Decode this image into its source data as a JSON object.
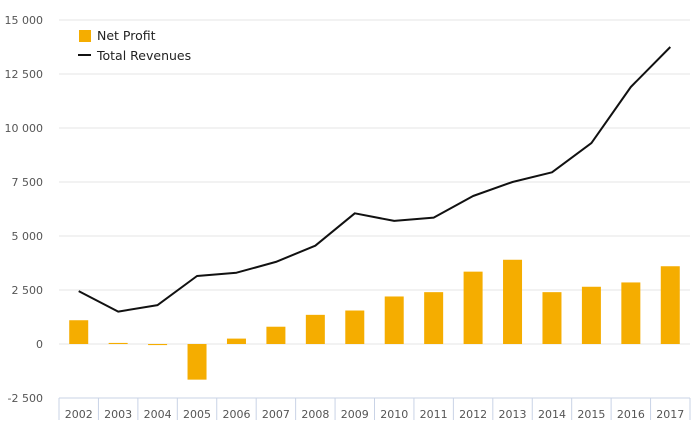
{
  "chart_data": {
    "type": "bar+line",
    "categories": [
      "2002",
      "2003",
      "2004",
      "2005",
      "2006",
      "2007",
      "2008",
      "2009",
      "2010",
      "2011",
      "2012",
      "2013",
      "2014",
      "2015",
      "2016",
      "2017"
    ],
    "series": [
      {
        "name": "Net Profit",
        "kind": "bar",
        "color": "#f5ad00",
        "values": [
          1100,
          50,
          -50,
          -1650,
          250,
          800,
          1350,
          1550,
          2200,
          2400,
          3350,
          3900,
          2400,
          2650,
          2850,
          3600
        ]
      },
      {
        "name": "Total Revenues",
        "kind": "line",
        "color": "#111111",
        "values": [
          2450,
          1500,
          1800,
          3150,
          3300,
          3800,
          4550,
          6050,
          5700,
          5850,
          6850,
          7500,
          7950,
          9300,
          11900,
          13750
        ]
      }
    ],
    "y_ticks": [
      -2500,
      0,
      2500,
      5000,
      7500,
      10000,
      12500,
      15000
    ],
    "y_tick_labels": [
      "-2 500",
      "0",
      "2 500",
      "5 000",
      "7 500",
      "10 000",
      "12 500",
      "15 000"
    ],
    "ylim": [
      -2500,
      15000
    ],
    "grid": true,
    "legend_position": "top-left"
  }
}
